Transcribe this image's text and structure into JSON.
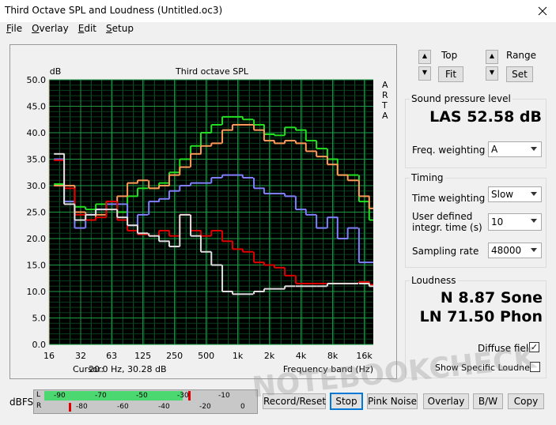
{
  "window": {
    "title": "Third Octave SPL and Loudness (Untitled.oc3)",
    "menu": [
      "File",
      "Overlay",
      "Edit",
      "Setup"
    ]
  },
  "chart_data": {
    "type": "step",
    "title": "Third octave SPL",
    "y_unit": "dB",
    "side_label": "ARTA",
    "xlabel": "Frequency band (Hz)",
    "cursor_label": "Cursor:",
    "cursor_readout": "20.0 Hz, 30.28 dB",
    "x": [
      20,
      25,
      31.5,
      40,
      50,
      63,
      80,
      100,
      125,
      160,
      200,
      250,
      315,
      400,
      500,
      630,
      800,
      1000,
      1250,
      1600,
      2000,
      2500,
      3150,
      4000,
      5000,
      6300,
      8000,
      10000,
      12500,
      16000,
      20000
    ],
    "series": [
      {
        "color": "#22e022",
        "values": [
          30.3,
          27,
          26,
          25.5,
          26.5,
          27,
          25,
          28,
          29.5,
          29.5,
          30.5,
          32.5,
          35,
          37.5,
          40,
          41.5,
          43,
          43,
          42.5,
          41.5,
          39.7,
          39.5,
          41,
          40.5,
          38.5,
          37,
          35,
          32,
          32,
          27,
          23.5
        ]
      },
      {
        "color": "#ff9a5a",
        "values": [
          30,
          30,
          25,
          23.5,
          24.5,
          27,
          28,
          30.5,
          31,
          29.5,
          30,
          32,
          33.5,
          36,
          37.5,
          38,
          40.5,
          41.5,
          41.5,
          40.5,
          38.5,
          38,
          38.5,
          38,
          36.5,
          35.5,
          34,
          32,
          31,
          28,
          25.7
        ]
      },
      {
        "color": "#8080ff",
        "values": [
          35,
          27,
          22,
          24.5,
          25.5,
          26.5,
          26.5,
          22.5,
          24.5,
          27,
          27.5,
          29,
          30,
          30.5,
          30.5,
          31.5,
          32,
          32,
          31.5,
          29.5,
          28.5,
          28.5,
          28,
          25.5,
          24.5,
          22,
          24,
          20,
          22,
          15.5,
          15.5
        ]
      },
      {
        "color": "#e00000",
        "values": [
          34.8,
          29.5,
          24.5,
          23.5,
          24,
          27,
          23.5,
          21.5,
          20.8,
          20.5,
          21.5,
          20.5,
          24.5,
          21.5,
          20.5,
          21.5,
          19.5,
          18,
          17.5,
          15.5,
          15,
          14.5,
          13,
          11.5,
          11.5,
          11.5,
          11.5,
          11.5,
          11.5,
          11.8,
          11.3
        ]
      },
      {
        "color": "#e0e0e0",
        "values": [
          36,
          26.5,
          23.5,
          24.5,
          25.5,
          25.5,
          24,
          22.5,
          21,
          20.5,
          19.5,
          18.5,
          24.5,
          20.5,
          17.5,
          15,
          10,
          9.5,
          9.5,
          10,
          10.5,
          10.5,
          11,
          11,
          11,
          11,
          11.5,
          11.5,
          11.5,
          11.5,
          11
        ]
      }
    ],
    "xscale": "log",
    "xlim": [
      16,
      19500
    ],
    "ylim": [
      0,
      50
    ],
    "xticks": [
      16,
      32,
      63,
      125,
      250,
      500,
      {
        "value": 1000,
        "label": "1k"
      },
      {
        "value": 2000,
        "label": "2k"
      },
      {
        "value": 4000,
        "label": "4k"
      },
      {
        "value": 8000,
        "label": "8k"
      },
      {
        "value": 16000,
        "label": "16k"
      }
    ],
    "yticks": [
      {
        "value": 0,
        "label": "0.0"
      },
      {
        "value": 5,
        "label": "5.0"
      },
      {
        "value": 10,
        "label": "10.0"
      },
      {
        "value": 15,
        "label": "15.0"
      },
      {
        "value": 20,
        "label": "20.0"
      },
      {
        "value": 25,
        "label": "25.0"
      },
      {
        "value": 30,
        "label": "30.0"
      },
      {
        "value": 35,
        "label": "35.0"
      },
      {
        "value": 40,
        "label": "40.0"
      },
      {
        "value": 45,
        "label": "45.0"
      },
      {
        "value": 50,
        "label": "50.0"
      }
    ],
    "grid": true
  },
  "controls": {
    "top_label": "Top",
    "fit": "Fit",
    "range_label": "Range",
    "set": "Set"
  },
  "spl": {
    "group": "Sound pressure level",
    "reading": "LAS 52.58 dB",
    "freq_weighting_label": "Freq. weighting",
    "freq_weighting": "A"
  },
  "timing": {
    "group": "Timing",
    "time_weighting_label": "Time weighting",
    "time_weighting": "Slow",
    "integr_label_1": "User defined",
    "integr_label_2": "integr. time (s)",
    "integr_time": "10",
    "sampling_rate_label": "Sampling rate",
    "sampling_rate": "48000"
  },
  "loudness": {
    "group": "Loudness",
    "n": "N 8.87 Sone",
    "ln": "LN 71.50 Phon",
    "diffuse_field": "Diffuse field",
    "show_specific": "Show Specific Loudness"
  },
  "meter": {
    "label": "dBFS",
    "channels": [
      "L",
      "R"
    ],
    "scale_l": [
      "-90",
      "-70",
      "-50",
      "-30",
      "-10"
    ],
    "scale_r": [
      "-80",
      "-60",
      "-40",
      "-20",
      "0"
    ]
  },
  "buttons": [
    "Record/Reset",
    "Stop",
    "Pink Noise",
    "Overlay",
    "B/W",
    "Copy"
  ],
  "watermark": "NOTEBOOKCHECK"
}
